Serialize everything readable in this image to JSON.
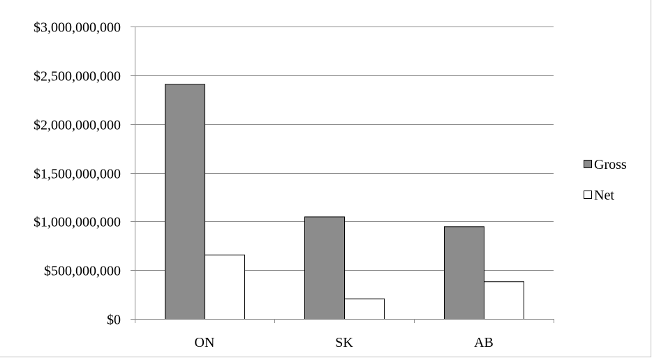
{
  "chart_data": {
    "type": "bar",
    "title": "",
    "xlabel": "",
    "ylabel": "",
    "categories": [
      "ON",
      "SK",
      "AB"
    ],
    "series": [
      {
        "name": "Gross",
        "values": [
          2410000000,
          1050000000,
          950000000
        ],
        "color": "#8c8c8c"
      },
      {
        "name": "Net",
        "values": [
          660000000,
          210000000,
          385000000
        ],
        "color": "#ffffff"
      }
    ],
    "ylim": [
      0,
      3000000000
    ],
    "yticks": [
      0,
      500000000,
      1000000000,
      1500000000,
      2000000000,
      2500000000,
      3000000000
    ],
    "ytick_labels": [
      "$0",
      "$500,000,000",
      "$1,000,000,000",
      "$1,500,000,000",
      "$2,000,000,000",
      "$2,500,000,000",
      "$3,000,000,000"
    ],
    "grid": true,
    "legend_position": "right"
  }
}
